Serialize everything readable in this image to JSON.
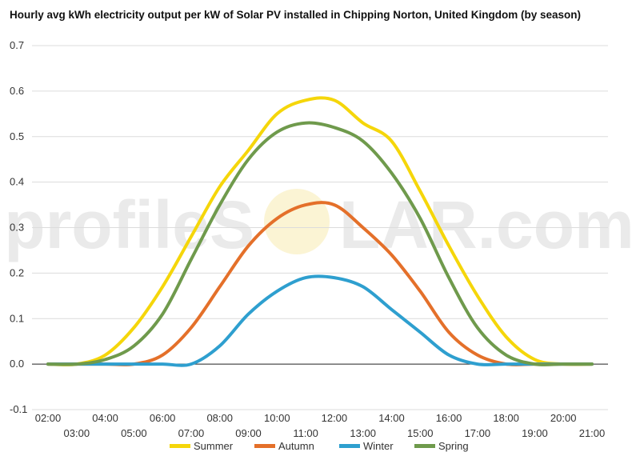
{
  "chart_data": {
    "type": "line",
    "title": "Hourly avg kWh electricity output per kW of Solar PV installed in Chipping Norton, United Kingdom (by season)",
    "xlabel": "",
    "ylabel": "",
    "ylim": [
      -0.1,
      0.7
    ],
    "yticks": [
      "-0.1",
      "0.0",
      "0.1",
      "0.2",
      "0.3",
      "0.4",
      "0.5",
      "0.6",
      "0.7"
    ],
    "x": [
      "02:00",
      "03:00",
      "04:00",
      "05:00",
      "06:00",
      "07:00",
      "08:00",
      "09:00",
      "10:00",
      "11:00",
      "12:00",
      "13:00",
      "14:00",
      "15:00",
      "16:00",
      "17:00",
      "18:00",
      "19:00",
      "20:00",
      "21:00"
    ],
    "grid": true,
    "legend": "bottom",
    "series": [
      {
        "name": "Summer",
        "color": "#f5d60a",
        "values": [
          0.0,
          0.0,
          0.02,
          0.08,
          0.17,
          0.28,
          0.39,
          0.47,
          0.55,
          0.58,
          0.58,
          0.53,
          0.49,
          0.38,
          0.26,
          0.15,
          0.06,
          0.01,
          0.0,
          0.0
        ]
      },
      {
        "name": "Autumn",
        "color": "#e4702a",
        "values": [
          0.0,
          0.0,
          0.0,
          0.0,
          0.02,
          0.08,
          0.17,
          0.26,
          0.32,
          0.35,
          0.35,
          0.3,
          0.24,
          0.16,
          0.07,
          0.02,
          0.0,
          0.0,
          0.0,
          0.0
        ]
      },
      {
        "name": "Winter",
        "color": "#2e9fcf",
        "values": [
          0.0,
          0.0,
          0.0,
          0.0,
          0.0,
          0.0,
          0.04,
          0.11,
          0.16,
          0.19,
          0.19,
          0.17,
          0.12,
          0.07,
          0.02,
          0.0,
          0.0,
          0.0,
          0.0,
          0.0
        ]
      },
      {
        "name": "Spring",
        "color": "#6f9a4c",
        "values": [
          0.0,
          0.0,
          0.01,
          0.04,
          0.11,
          0.23,
          0.35,
          0.45,
          0.51,
          0.53,
          0.52,
          0.49,
          0.42,
          0.32,
          0.19,
          0.08,
          0.02,
          0.0,
          0.0,
          0.0
        ]
      }
    ]
  },
  "watermark": {
    "text_left": "profileS",
    "text_right": "LAR.com"
  }
}
